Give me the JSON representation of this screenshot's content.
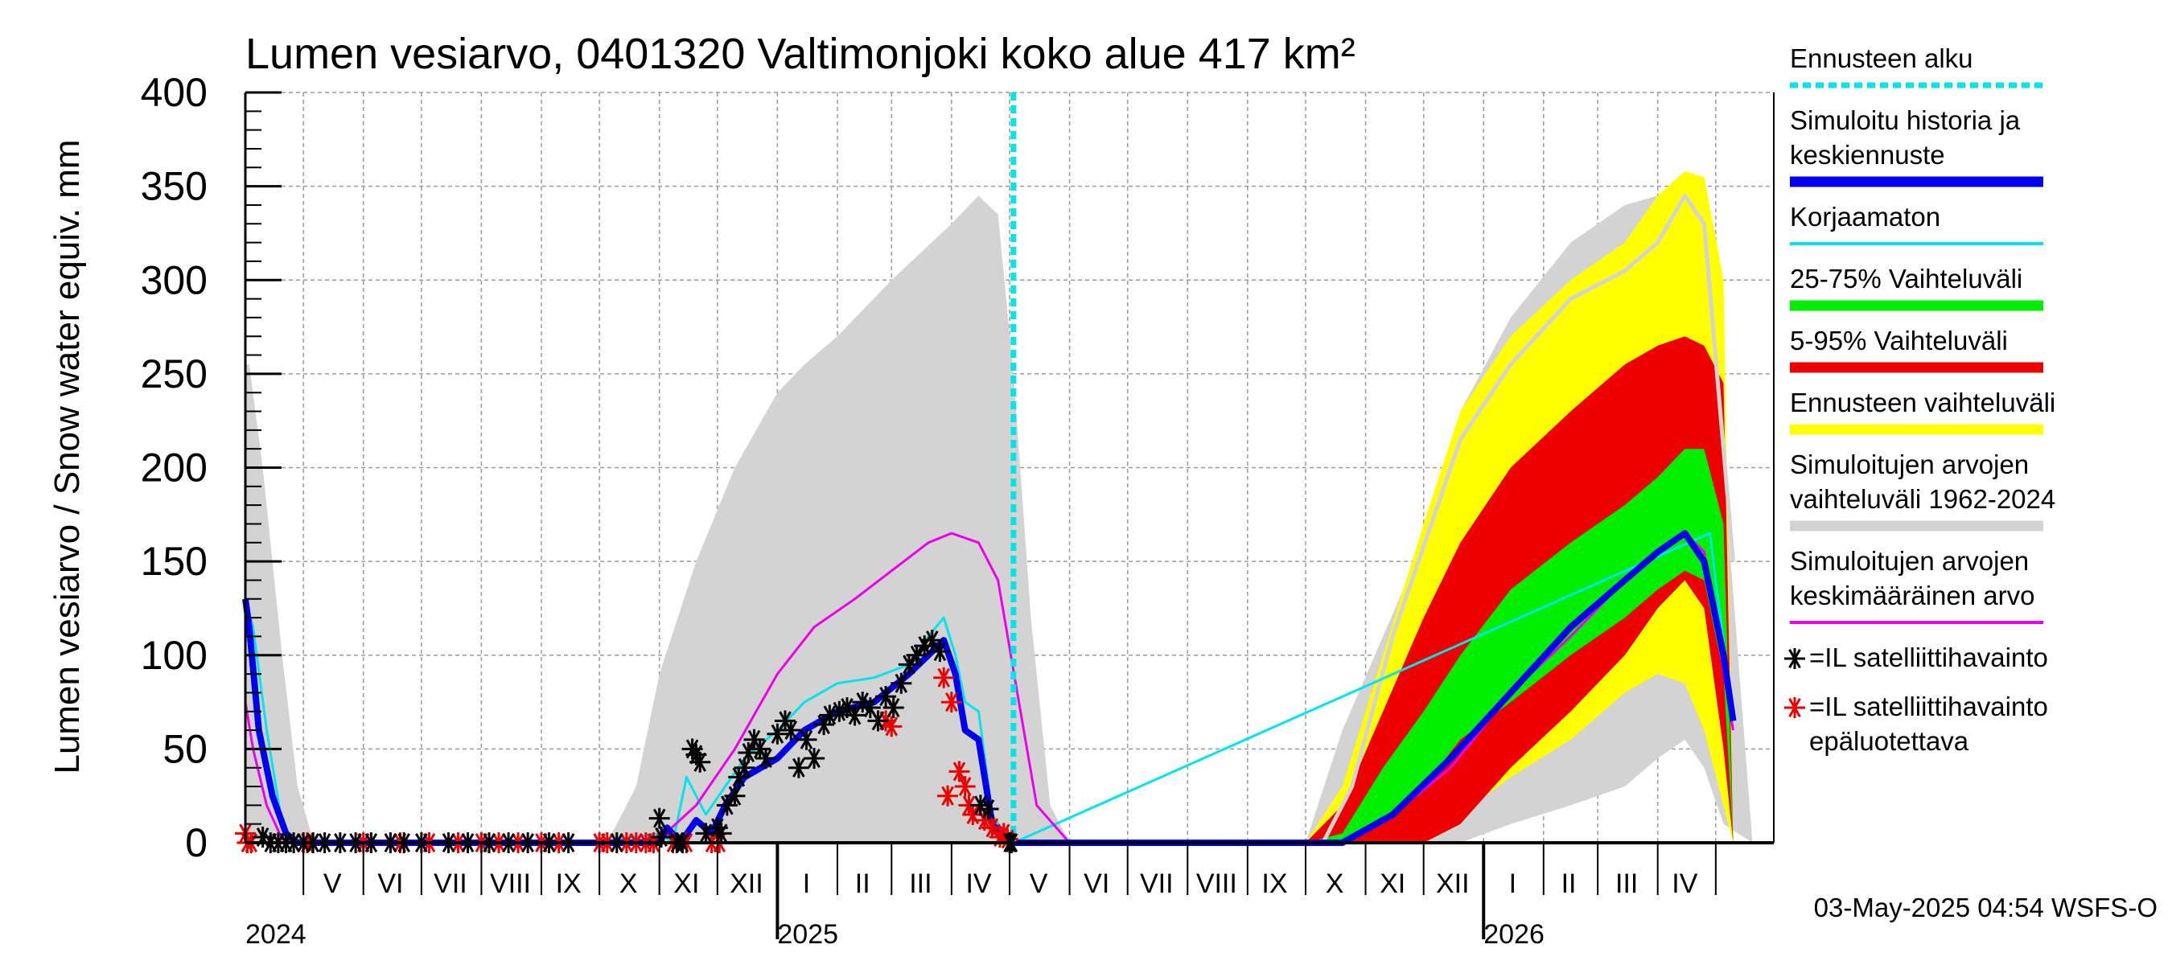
{
  "chart_data": {
    "type": "area",
    "title": "Lumen vesiarvo, 0401320 Valtimonjoki koko alue 417 km²",
    "ylabel": "Lumen vesiarvo / Snow water equiv.    mm",
    "ylim": [
      0,
      400
    ],
    "yticks": [
      0,
      50,
      100,
      150,
      200,
      250,
      300,
      350,
      400
    ],
    "xlim": [
      "2024-04-01",
      "2026-05-31"
    ],
    "forecast_start": "2025-05-03",
    "timestamp": "03-May-2025 04:54 WSFS-O",
    "month_labels": [
      {
        "label": "V",
        "date": "2024-05-16"
      },
      {
        "label": "VI",
        "date": "2024-06-15"
      },
      {
        "label": "VII",
        "date": "2024-07-16"
      },
      {
        "label": "VIII",
        "date": "2024-08-16"
      },
      {
        "label": "IX",
        "date": "2024-09-15"
      },
      {
        "label": "X",
        "date": "2024-10-16"
      },
      {
        "label": "XI",
        "date": "2024-11-15"
      },
      {
        "label": "XII",
        "date": "2024-12-16"
      },
      {
        "label": "I",
        "date": "2025-01-16"
      },
      {
        "label": "II",
        "date": "2025-02-14"
      },
      {
        "label": "III",
        "date": "2025-03-16"
      },
      {
        "label": "IV",
        "date": "2025-04-15"
      },
      {
        "label": "V",
        "date": "2025-05-16"
      },
      {
        "label": "VI",
        "date": "2025-06-15"
      },
      {
        "label": "VII",
        "date": "2025-07-16"
      },
      {
        "label": "VIII",
        "date": "2025-08-16"
      },
      {
        "label": "IX",
        "date": "2025-09-15"
      },
      {
        "label": "X",
        "date": "2025-10-16"
      },
      {
        "label": "XI",
        "date": "2025-11-15"
      },
      {
        "label": "XII",
        "date": "2025-12-16"
      },
      {
        "label": "I",
        "date": "2026-01-16"
      },
      {
        "label": "II",
        "date": "2026-02-14"
      },
      {
        "label": "III",
        "date": "2026-03-16"
      },
      {
        "label": "IV",
        "date": "2026-04-15"
      }
    ],
    "year_labels": [
      {
        "label": "2024",
        "date": "2024-04-01"
      },
      {
        "label": "2025",
        "date": "2025-01-01"
      },
      {
        "label": "2026",
        "date": "2026-01-01"
      }
    ],
    "legend": [
      {
        "label": [
          "Ennusteen alku"
        ],
        "color": "#00e5ee",
        "style": "dashed"
      },
      {
        "label": [
          "Simuloitu historia ja",
          "keskiennuste"
        ],
        "color": "#0000ee",
        "style": "thick"
      },
      {
        "label": [
          "Korjaamaton"
        ],
        "color": "#00e5ee",
        "style": "line"
      },
      {
        "label": [
          "25-75% Vaihteluväli"
        ],
        "color": "#00ee00",
        "style": "thick"
      },
      {
        "label": [
          "5-95% Vaihteluväli"
        ],
        "color": "#ee0000",
        "style": "thick"
      },
      {
        "label": [
          "Ennusteen vaihteluväli"
        ],
        "color": "#ffff00",
        "style": "thick"
      },
      {
        "label": [
          "Simuloitujen arvojen",
          "vaihteluväli 1962-2024"
        ],
        "color": "#d3d3d3",
        "style": "thick"
      },
      {
        "label": [
          "Simuloitujen arvojen",
          "keskimääräinen arvo"
        ],
        "color": "#ee00ee",
        "style": "line"
      },
      {
        "label": [
          "=IL satelliittihavainto"
        ],
        "color": "#000000",
        "style": "marker"
      },
      {
        "label": [
          "=IL satelliittihavainto",
          "epäluotettava"
        ],
        "color": "#ee0000",
        "style": "marker"
      }
    ],
    "series": [
      {
        "name": "Simuloitujen arvojen vaihteluväli 1962-2024",
        "kind": "band",
        "color": "#d3d3d3",
        "x": [
          "2024-04-01",
          "2024-04-03",
          "2024-04-10",
          "2024-04-20",
          "2024-04-28",
          "2024-05-05",
          "2024-05-15",
          "2024-10-05",
          "2024-10-20",
          "2024-11-01",
          "2024-11-20",
          "2024-12-10",
          "2025-01-01",
          "2025-01-15",
          "2025-02-01",
          "2025-03-01",
          "2025-04-01",
          "2025-04-15",
          "2025-04-25",
          "2025-05-03",
          "2025-05-12",
          "2025-05-22",
          "2025-06-01",
          "2025-10-01",
          "2025-10-20",
          "2025-11-10",
          "2025-12-01",
          "2025-12-20",
          "2026-01-15",
          "2026-02-15",
          "2026-03-15",
          "2026-04-01",
          "2026-04-15",
          "2026-04-25",
          "2026-05-05",
          "2026-05-20"
        ],
        "low": [
          0,
          0,
          0,
          0,
          0,
          0,
          0,
          0,
          0,
          0,
          0,
          0,
          0,
          0,
          0,
          0,
          0,
          0,
          0,
          0,
          0,
          0,
          0,
          0,
          0,
          0,
          0,
          0,
          10,
          20,
          30,
          45,
          55,
          40,
          10,
          0
        ],
        "high": [
          255,
          255,
          200,
          100,
          30,
          5,
          0,
          0,
          30,
          90,
          150,
          200,
          240,
          255,
          270,
          300,
          330,
          345,
          335,
          250,
          120,
          20,
          0,
          0,
          60,
          110,
          160,
          230,
          280,
          320,
          340,
          345,
          345,
          320,
          200,
          0
        ]
      },
      {
        "name": "Ennusteen vaihteluväli",
        "kind": "band",
        "color": "#ffff00",
        "x": [
          "2025-10-01",
          "2025-10-20",
          "2025-11-10",
          "2025-12-01",
          "2025-12-20",
          "2026-01-15",
          "2026-02-15",
          "2026-03-15",
          "2026-04-01",
          "2026-04-15",
          "2026-04-25",
          "2026-05-05",
          "2026-05-10"
        ],
        "low": [
          0,
          0,
          0,
          5,
          15,
          35,
          55,
          80,
          90,
          85,
          60,
          20,
          0
        ],
        "high": [
          0,
          30,
          100,
          170,
          230,
          270,
          300,
          320,
          345,
          358,
          355,
          300,
          0
        ]
      },
      {
        "name": "5-95% Vaihteluväli",
        "kind": "band",
        "color": "#ee0000",
        "x": [
          "2025-10-01",
          "2025-10-20",
          "2025-11-10",
          "2025-12-01",
          "2025-12-20",
          "2026-01-15",
          "2026-02-15",
          "2026-03-15",
          "2026-04-01",
          "2026-04-15",
          "2026-04-25",
          "2026-05-05",
          "2026-05-10"
        ],
        "low": [
          0,
          0,
          0,
          0,
          10,
          40,
          70,
          100,
          125,
          140,
          125,
          50,
          0
        ],
        "high": [
          0,
          20,
          70,
          120,
          160,
          200,
          230,
          255,
          265,
          270,
          265,
          245,
          0
        ]
      },
      {
        "name": "25-75% Vaihteluväli",
        "kind": "band",
        "color": "#00ee00",
        "x": [
          "2025-10-01",
          "2025-10-20",
          "2025-11-10",
          "2025-12-01",
          "2025-12-20",
          "2026-01-15",
          "2026-02-15",
          "2026-03-15",
          "2026-04-01",
          "2026-04-15",
          "2026-04-25",
          "2026-05-05",
          "2026-05-10"
        ],
        "low": [
          0,
          0,
          10,
          30,
          55,
          75,
          100,
          120,
          135,
          145,
          140,
          90,
          0
        ],
        "high": [
          0,
          5,
          40,
          70,
          100,
          135,
          160,
          180,
          195,
          210,
          210,
          170,
          0
        ]
      },
      {
        "name": "Ennusteen yläraja",
        "kind": "line",
        "color": "#d3d3d3",
        "width": 5,
        "x": [
          "2025-10-10",
          "2025-10-25",
          "2025-11-15",
          "2025-12-05",
          "2025-12-20",
          "2026-01-15",
          "2026-02-15",
          "2026-03-15",
          "2026-04-01",
          "2026-04-15",
          "2026-04-25",
          "2026-05-10"
        ],
        "y": [
          0,
          30,
          110,
          170,
          215,
          255,
          290,
          305,
          320,
          345,
          330,
          150
        ]
      },
      {
        "name": "Korjaamaton",
        "kind": "line",
        "color": "#00e5ee",
        "width": 3,
        "x": [
          "2024-04-01",
          "2024-04-05",
          "2024-04-12",
          "2024-04-20",
          "2024-04-25",
          "2024-05-01",
          "2024-09-20",
          "2024-10-01",
          "2024-11-01",
          "2024-11-08",
          "2024-11-15",
          "2024-11-25",
          "2024-12-05",
          "2024-12-15",
          "2025-01-01",
          "2025-01-15",
          "2025-02-01",
          "2025-02-20",
          "2025-03-10",
          "2025-03-20",
          "2025-03-28",
          "2025-04-03",
          "2025-04-08",
          "2025-04-15",
          "2025-04-22",
          "2025-04-28",
          "2025-05-03",
          "2026-04-28",
          "2026-05-10"
        ],
        "y": [
          130,
          115,
          60,
          10,
          0,
          0,
          0,
          0,
          5,
          0,
          35,
          15,
          30,
          45,
          60,
          75,
          85,
          88,
          95,
          110,
          120,
          100,
          75,
          70,
          15,
          5,
          0,
          165,
          65
        ]
      },
      {
        "name": "Simuloitujen arvojen keskimääräinen arvo",
        "kind": "line",
        "color": "#ee00ee",
        "width": 3,
        "x": [
          "2024-04-01",
          "2024-04-05",
          "2024-04-12",
          "2024-04-20",
          "2024-04-25",
          "2024-05-01",
          "2024-10-01",
          "2024-11-01",
          "2024-11-20",
          "2024-12-10",
          "2025-01-01",
          "2025-01-20",
          "2025-02-10",
          "2025-03-01",
          "2025-03-20",
          "2025-04-01",
          "2025-04-15",
          "2025-04-25",
          "2025-05-05",
          "2025-05-15",
          "2025-06-01",
          "2025-10-20",
          "2025-11-15",
          "2025-12-15",
          "2026-01-15",
          "2026-02-15",
          "2026-03-15",
          "2026-04-01",
          "2026-04-15",
          "2026-04-25",
          "2026-05-10"
        ],
        "y": [
          75,
          50,
          20,
          2,
          0,
          0,
          0,
          2,
          20,
          50,
          90,
          115,
          130,
          145,
          160,
          165,
          160,
          140,
          80,
          20,
          0,
          0,
          15,
          40,
          80,
          110,
          140,
          155,
          165,
          155,
          60
        ]
      },
      {
        "name": "Simuloitu historia ja keskiennuste",
        "kind": "line",
        "color": "#0000ee",
        "width": 8,
        "x": [
          "2024-04-01",
          "2024-04-03",
          "2024-04-08",
          "2024-04-15",
          "2024-04-22",
          "2024-04-28",
          "2024-05-01",
          "2024-09-20",
          "2024-10-01",
          "2024-11-01",
          "2024-11-05",
          "2024-11-12",
          "2024-11-20",
          "2024-11-28",
          "2024-12-05",
          "2024-12-15",
          "2025-01-01",
          "2025-01-15",
          "2025-02-01",
          "2025-02-20",
          "2025-03-10",
          "2025-03-20",
          "2025-03-28",
          "2025-04-03",
          "2025-04-08",
          "2025-04-15",
          "2025-04-22",
          "2025-04-28",
          "2025-05-03",
          "2025-10-20",
          "2025-11-15",
          "2025-12-15",
          "2026-01-15",
          "2026-02-15",
          "2026-03-15",
          "2026-04-01",
          "2026-04-15",
          "2026-04-25",
          "2026-05-05",
          "2026-05-10"
        ],
        "y": [
          130,
          115,
          60,
          25,
          5,
          0,
          0,
          0,
          0,
          0,
          8,
          0,
          12,
          5,
          20,
          35,
          45,
          60,
          70,
          75,
          90,
          100,
          108,
          90,
          60,
          55,
          10,
          3,
          0,
          0,
          15,
          45,
          80,
          115,
          140,
          155,
          165,
          150,
          100,
          65
        ]
      }
    ],
    "observations": {
      "reliable": [
        [
          "2024-04-10",
          3
        ],
        [
          "2024-04-14",
          0
        ],
        [
          "2024-04-18",
          0
        ],
        [
          "2024-04-22",
          0
        ],
        [
          "2024-04-26",
          0
        ],
        [
          "2024-05-01",
          0
        ],
        [
          "2024-05-06",
          0
        ],
        [
          "2024-05-12",
          0
        ],
        [
          "2024-05-20",
          0
        ],
        [
          "2024-05-28",
          0
        ],
        [
          "2024-06-05",
          0
        ],
        [
          "2024-06-15",
          0
        ],
        [
          "2024-06-22",
          0
        ],
        [
          "2024-07-01",
          0
        ],
        [
          "2024-07-15",
          0
        ],
        [
          "2024-07-25",
          0
        ],
        [
          "2024-08-05",
          0
        ],
        [
          "2024-08-15",
          0
        ],
        [
          "2024-08-25",
          0
        ],
        [
          "2024-09-05",
          0
        ],
        [
          "2024-09-15",
          0
        ],
        [
          "2024-10-10",
          0
        ],
        [
          "2024-11-01",
          13
        ],
        [
          "2024-11-02",
          3
        ],
        [
          "2024-11-10",
          0
        ],
        [
          "2024-11-13",
          0
        ],
        [
          "2024-11-18",
          50
        ],
        [
          "2024-11-20",
          47
        ],
        [
          "2024-11-22",
          43
        ],
        [
          "2024-11-25",
          5
        ],
        [
          "2024-12-01",
          8
        ],
        [
          "2024-12-03",
          5
        ],
        [
          "2024-12-06",
          20
        ],
        [
          "2024-12-10",
          25
        ],
        [
          "2024-12-12",
          35
        ],
        [
          "2024-12-15",
          40
        ],
        [
          "2024-12-17",
          48
        ],
        [
          "2024-12-20",
          55
        ],
        [
          "2024-12-23",
          50
        ],
        [
          "2024-12-26",
          45
        ],
        [
          "2025-01-01",
          58
        ],
        [
          "2025-01-05",
          65
        ],
        [
          "2025-01-08",
          60
        ],
        [
          "2025-01-12",
          40
        ],
        [
          "2025-01-16",
          55
        ],
        [
          "2025-01-20",
          45
        ],
        [
          "2025-01-25",
          63
        ],
        [
          "2025-01-28",
          68
        ],
        [
          "2025-02-02",
          70
        ],
        [
          "2025-02-06",
          72
        ],
        [
          "2025-02-10",
          68
        ],
        [
          "2025-02-14",
          75
        ],
        [
          "2025-02-18",
          72
        ],
        [
          "2025-02-22",
          65
        ],
        [
          "2025-02-26",
          78
        ],
        [
          "2025-03-02",
          72
        ],
        [
          "2025-03-06",
          85
        ],
        [
          "2025-03-10",
          95
        ],
        [
          "2025-03-14",
          100
        ],
        [
          "2025-03-18",
          105
        ],
        [
          "2025-03-22",
          108
        ],
        [
          "2025-03-26",
          102
        ],
        [
          "2025-04-16",
          20
        ],
        [
          "2025-04-20",
          18
        ],
        [
          "2025-05-01",
          0
        ],
        [
          "2025-05-02",
          0
        ]
      ],
      "unreliable": [
        [
          "2024-04-01",
          5
        ],
        [
          "2024-04-02",
          0
        ],
        [
          "2024-04-04",
          0
        ],
        [
          "2024-05-03",
          0
        ],
        [
          "2024-06-01",
          0
        ],
        [
          "2024-06-20",
          0
        ],
        [
          "2024-07-05",
          0
        ],
        [
          "2024-07-20",
          0
        ],
        [
          "2024-08-01",
          0
        ],
        [
          "2024-08-10",
          0
        ],
        [
          "2024-08-20",
          0
        ],
        [
          "2024-09-01",
          0
        ],
        [
          "2024-09-10",
          0
        ],
        [
          "2024-10-01",
          0
        ],
        [
          "2024-10-05",
          0
        ],
        [
          "2024-10-15",
          0
        ],
        [
          "2024-10-20",
          0
        ],
        [
          "2024-10-25",
          0
        ],
        [
          "2024-10-29",
          0
        ],
        [
          "2024-11-08",
          0
        ],
        [
          "2024-11-15",
          0
        ],
        [
          "2024-11-28",
          0
        ],
        [
          "2024-12-02",
          0
        ],
        [
          "2025-02-26",
          65
        ],
        [
          "2025-03-01",
          62
        ],
        [
          "2025-03-28",
          88
        ],
        [
          "2025-04-01",
          75
        ],
        [
          "2025-03-30",
          25
        ],
        [
          "2025-04-05",
          38
        ],
        [
          "2025-04-08",
          30
        ],
        [
          "2025-04-10",
          20
        ],
        [
          "2025-04-12",
          15
        ],
        [
          "2025-04-18",
          12
        ],
        [
          "2025-04-22",
          8
        ],
        [
          "2025-04-26",
          3
        ],
        [
          "2025-04-28",
          5
        ],
        [
          "2025-04-30",
          2
        ]
      ]
    }
  }
}
